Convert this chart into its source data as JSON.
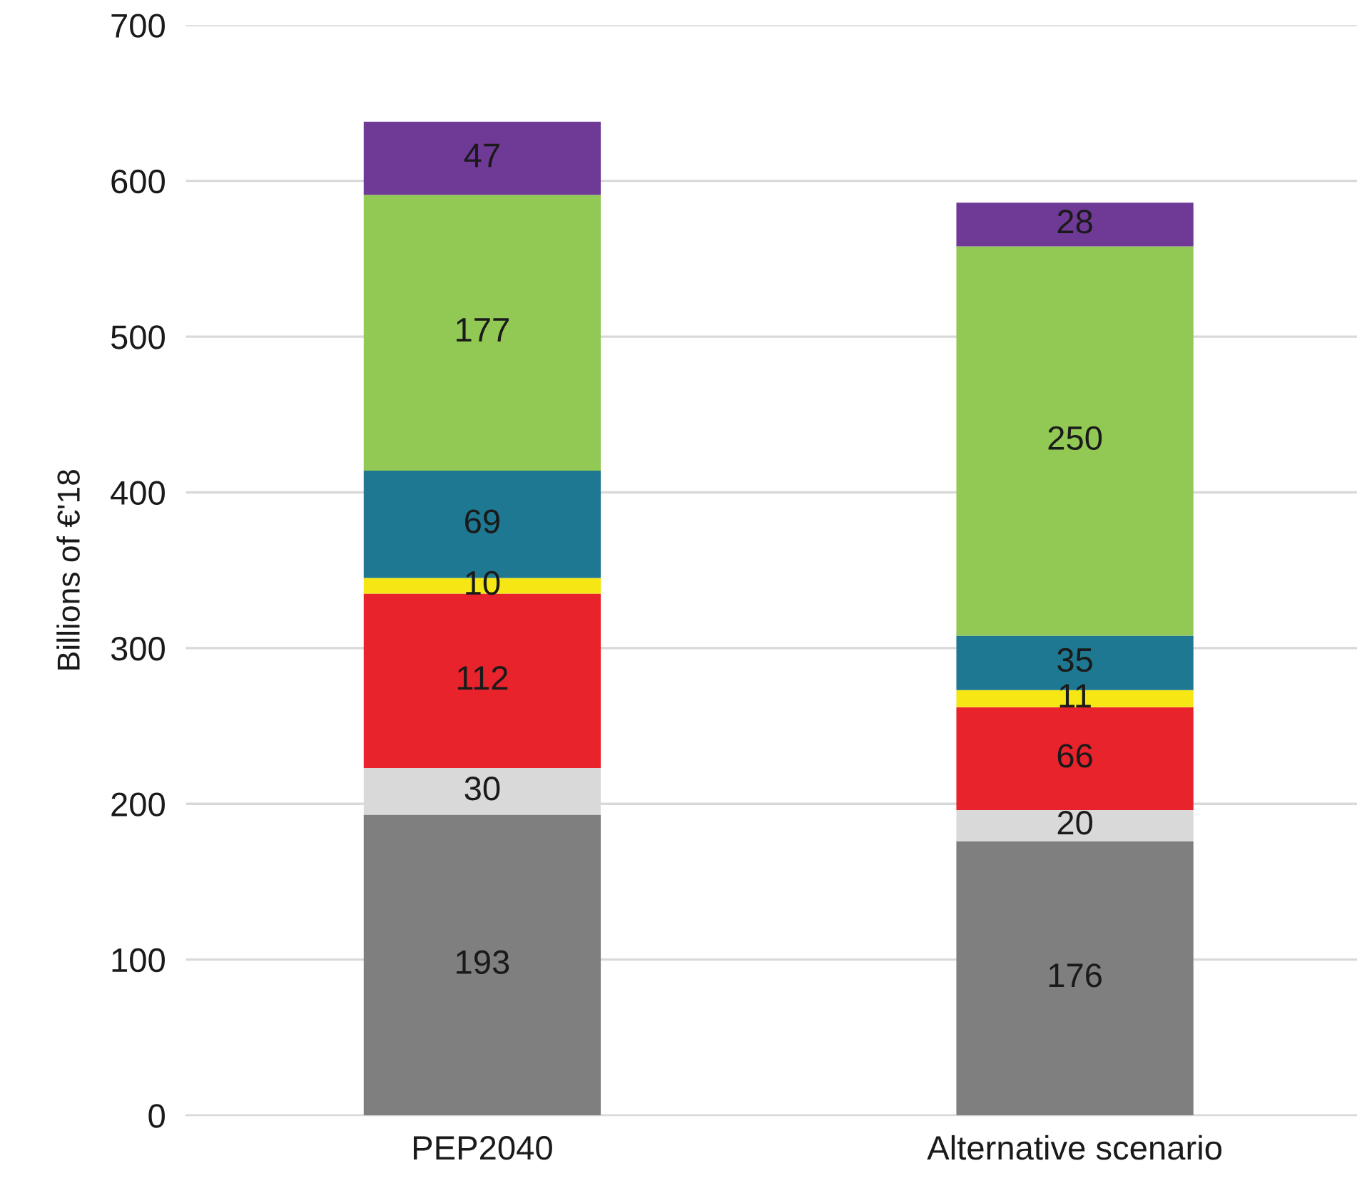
{
  "chart_data": {
    "type": "bar",
    "stacked": true,
    "ylabel": "Billions of €'18",
    "categories": [
      "PEP2040",
      "Alternative scenario"
    ],
    "series": [
      {
        "color": "#7f7f7f",
        "values": [
          193,
          176
        ]
      },
      {
        "color": "#d9d9d9",
        "values": [
          30,
          20
        ]
      },
      {
        "color": "#e8232b",
        "values": [
          112,
          66
        ]
      },
      {
        "color": "#f5e614",
        "values": [
          10,
          11
        ]
      },
      {
        "color": "#1f7891",
        "values": [
          69,
          35
        ]
      },
      {
        "color": "#92c955",
        "values": [
          177,
          250
        ]
      },
      {
        "color": "#6f3996",
        "values": [
          47,
          28
        ]
      }
    ],
    "ylim": [
      0,
      700
    ],
    "yticks": [
      0,
      100,
      200,
      300,
      400,
      500,
      600,
      700
    ],
    "grid": "y",
    "data_labels": true
  }
}
